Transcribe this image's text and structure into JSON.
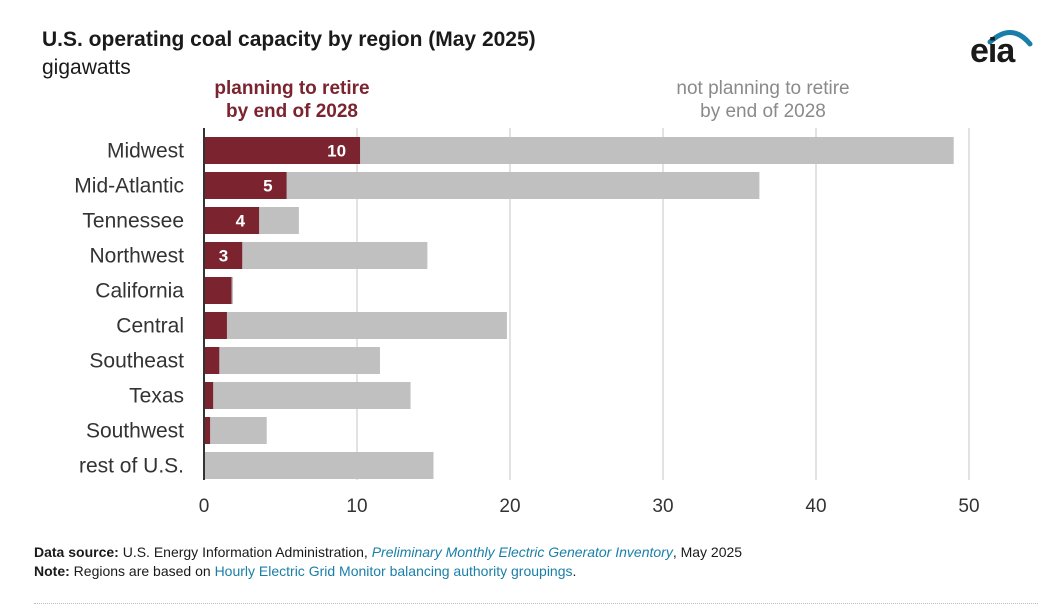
{
  "header": {
    "title": "U.S. operating coal capacity by region (May 2025)",
    "subtitle": "gigawatts",
    "logo_text": "eia"
  },
  "legend": {
    "retire_line1": "planning to retire",
    "retire_line2": "by end of 2028",
    "not_retire_line1": "not planning to retire",
    "not_retire_line2": "by end of 2028"
  },
  "chart_data": {
    "type": "bar",
    "orientation": "horizontal",
    "stacked": true,
    "categories": [
      "Midwest",
      "Mid-Atlantic",
      "Tennessee",
      "Northwest",
      "California",
      "Central",
      "Southeast",
      "Texas",
      "Southwest",
      "rest of U.S."
    ],
    "series": [
      {
        "name": "planning to retire by end of 2028",
        "color": "#7b2430",
        "values": [
          10.2,
          5.4,
          3.6,
          2.5,
          1.8,
          1.5,
          1.0,
          0.6,
          0.4,
          0
        ],
        "labels": [
          "10",
          "5",
          "4",
          "3",
          "",
          "",
          "",
          "",
          "",
          ""
        ]
      },
      {
        "name": "not planning to retire by end of 2028",
        "color": "#c0c0c0",
        "values": [
          38.8,
          30.9,
          2.6,
          12.1,
          0.1,
          18.3,
          10.5,
          12.9,
          3.7,
          15.0
        ]
      }
    ],
    "xlim": [
      0,
      50
    ],
    "xticks": [
      "0",
      "10",
      "20",
      "30",
      "40",
      "50"
    ],
    "grid": true
  },
  "footer": {
    "source_label": "Data source:",
    "source_text": "U.S. Energy Information Administration,",
    "source_link": "Preliminary Monthly Electric Generator Inventory",
    "source_date": ", May 2025",
    "note_label": "Note:",
    "note_text": "Regions are based on",
    "note_link": "Hourly Electric Grid Monitor balancing authority groupings",
    "note_end": "."
  },
  "colors": {
    "retire": "#7b2430",
    "not_retire": "#c0c0c0",
    "legend_retire": "#7b2430",
    "legend_not_retire": "#8a8a8a",
    "logo_arc": "#1a7fa8"
  }
}
